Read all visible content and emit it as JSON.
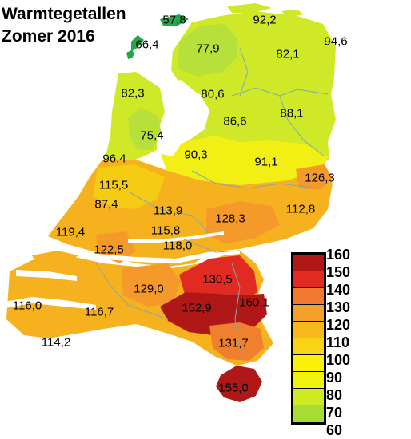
{
  "title_line1": "Warmtegetallen",
  "title_line2": "Zomer 2016",
  "stations": [
    {
      "id": "st-57-8",
      "label": "57,8"
    },
    {
      "id": "st-66-4",
      "label": "66,4"
    },
    {
      "id": "st-92-2",
      "label": "92,2"
    },
    {
      "id": "st-94-6",
      "label": "94,6"
    },
    {
      "id": "st-77-9",
      "label": "77,9"
    },
    {
      "id": "st-82-1",
      "label": "82,1"
    },
    {
      "id": "st-82-3",
      "label": "82,3"
    },
    {
      "id": "st-80-6",
      "label": "80,6"
    },
    {
      "id": "st-88-1",
      "label": "88,1"
    },
    {
      "id": "st-86-6",
      "label": "86,6"
    },
    {
      "id": "st-75-4",
      "label": "75,4"
    },
    {
      "id": "st-96-4",
      "label": "96,4"
    },
    {
      "id": "st-90-3",
      "label": "90,3"
    },
    {
      "id": "st-91-1",
      "label": "91,1"
    },
    {
      "id": "st-126-3",
      "label": "126,3"
    },
    {
      "id": "st-115-5",
      "label": "115,5"
    },
    {
      "id": "st-87-4",
      "label": "87,4"
    },
    {
      "id": "st-113-9",
      "label": "113,9"
    },
    {
      "id": "st-112-8",
      "label": "112,8"
    },
    {
      "id": "st-128-3",
      "label": "128,3"
    },
    {
      "id": "st-119-4",
      "label": "119,4"
    },
    {
      "id": "st-115-8",
      "label": "115,8"
    },
    {
      "id": "st-122-5",
      "label": "122,5"
    },
    {
      "id": "st-118-0",
      "label": "118,0"
    },
    {
      "id": "st-130-5",
      "label": "130,5"
    },
    {
      "id": "st-129-0",
      "label": "129,0"
    },
    {
      "id": "st-116-0",
      "label": "116,0"
    },
    {
      "id": "st-116-7",
      "label": "116,7"
    },
    {
      "id": "st-152-9",
      "label": "152,9"
    },
    {
      "id": "st-160-1",
      "label": "160,1"
    },
    {
      "id": "st-114-2",
      "label": "114,2"
    },
    {
      "id": "st-131-7",
      "label": "131,7"
    },
    {
      "id": "st-155-0",
      "label": "155,0"
    }
  ],
  "legend": {
    "labels": [
      "160",
      "150",
      "140",
      "130",
      "120",
      "110",
      "100",
      "90",
      "80",
      "70",
      "60"
    ],
    "colors": [
      "#b01818",
      "#e02a22",
      "#f27a30",
      "#f5a02a",
      "#f7b81e",
      "#f9d314",
      "#fbf00a",
      "#eef20e",
      "#cdea22",
      "#a6dc34",
      "#22a84a"
    ]
  },
  "colors": {
    "green_dark": "#22a84a",
    "green_light": "#b8e03a",
    "yellow_green": "#cfe828",
    "yellow": "#f2ef14",
    "yellow_orange": "#f6cc12",
    "orange_light": "#f6b21e",
    "orange": "#f59a2a",
    "orange_dark": "#f0802e",
    "red": "#e02a22",
    "red_dark": "#b01818",
    "water": "#ffffff",
    "border": "#7fa8b0"
  }
}
